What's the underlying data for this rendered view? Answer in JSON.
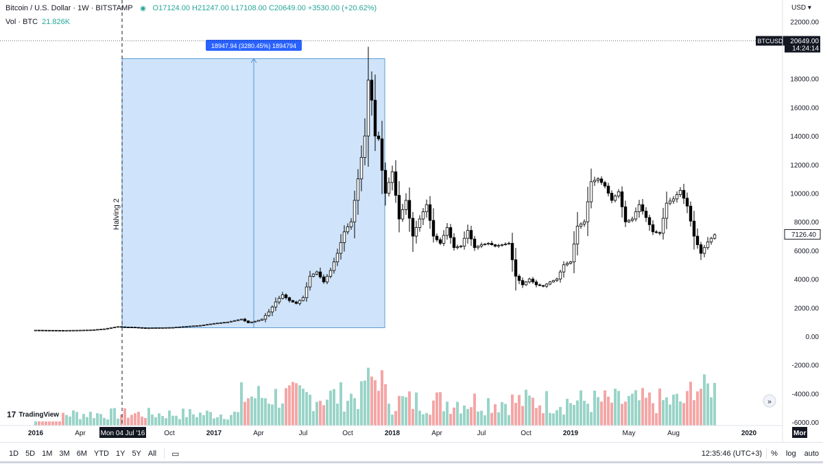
{
  "legend": {
    "symbol": "Bitcoin / U.S. Dollar · 1W · BITSTAMP",
    "open": "O17124.00",
    "high": "H21247.00",
    "low": "L17108.00",
    "close": "C20649.00",
    "change": "+3530.00 (+20.62%)",
    "vol_label": "Vol · BTC",
    "vol_value": "21.826K"
  },
  "currency": "USD",
  "price_tag": {
    "symbol": "BTCUSD",
    "price": "20649.00",
    "countdown": "14:24:14"
  },
  "last_label": "7126.40",
  "measure_label": "18947.94 (3280.45%) 1894794",
  "event_label": "Halving 2",
  "crosshair_date": "Mon 04 Jul '16",
  "time_labels": [
    {
      "t": "2016",
      "w": 0
    },
    {
      "t": "Apr",
      "w": 13
    },
    {
      "t": "Oct",
      "w": 39
    },
    {
      "t": "2017",
      "w": 52
    },
    {
      "t": "Apr",
      "w": 65
    },
    {
      "t": "Jul",
      "w": 78
    },
    {
      "t": "Oct",
      "w": 91
    },
    {
      "t": "2018",
      "w": 104
    },
    {
      "t": "Apr",
      "w": 117
    },
    {
      "t": "Jul",
      "w": 130
    },
    {
      "t": "Oct",
      "w": 143
    },
    {
      "t": "2019",
      "w": 156
    },
    {
      "t": "May",
      "w": 173
    },
    {
      "t": "Aug",
      "w": 186
    },
    {
      "t": "2020",
      "w": 208
    },
    {
      "t": "Mor",
      "w": 221
    }
  ],
  "price_ticks": [
    "22000.00",
    "18000.00",
    "16000.00",
    "14000.00",
    "12000.00",
    "10000.00",
    "8000.00",
    "6000.00",
    "4000.00",
    "2000.00",
    "0.00",
    "-2000.00",
    "-4000.00",
    "-6000.00"
  ],
  "timeframes": [
    "1D",
    "5D",
    "1M",
    "3M",
    "6M",
    "YTD",
    "1Y",
    "5Y",
    "All"
  ],
  "bottom_right": {
    "clock": "12:35:46 (UTC+3)",
    "percent": "%",
    "log": "log",
    "auto": "auto"
  },
  "logo_text": "TradingView",
  "colors": {
    "up": "#26a69a",
    "down": "#000000",
    "vol_up": "#9ad4c8",
    "vol_down": "#f4a6a6",
    "measure": "#2962ff"
  },
  "chart_data": {
    "type": "candlestick",
    "title": "Bitcoin / U.S. Dollar · 1W · BITSTAMP",
    "note": "weekly closes approximated; each point is [week_index, close]",
    "closes": [
      [
        0,
        430
      ],
      [
        4,
        420
      ],
      [
        8,
        415
      ],
      [
        12,
        425
      ],
      [
        16,
        445
      ],
      [
        20,
        520
      ],
      [
        24,
        680
      ],
      [
        26,
        650
      ],
      [
        28,
        640
      ],
      [
        32,
        580
      ],
      [
        36,
        600
      ],
      [
        40,
        620
      ],
      [
        44,
        700
      ],
      [
        48,
        760
      ],
      [
        52,
        900
      ],
      [
        56,
        1000
      ],
      [
        60,
        1200
      ],
      [
        62,
        950
      ],
      [
        64,
        1050
      ],
      [
        66,
        1200
      ],
      [
        68,
        1700
      ],
      [
        70,
        2400
      ],
      [
        72,
        2900
      ],
      [
        74,
        2500
      ],
      [
        76,
        2300
      ],
      [
        78,
        2700
      ],
      [
        80,
        4200
      ],
      [
        82,
        4500
      ],
      [
        84,
        3800
      ],
      [
        86,
        4600
      ],
      [
        88,
        5800
      ],
      [
        90,
        7300
      ],
      [
        92,
        8000
      ],
      [
        94,
        11000
      ],
      [
        96,
        14000
      ],
      [
        97,
        17900
      ],
      [
        98,
        16500
      ],
      [
        99,
        14000
      ],
      [
        100,
        13800
      ],
      [
        101,
        11600
      ],
      [
        102,
        10000
      ],
      [
        104,
        11500
      ],
      [
        106,
        8200
      ],
      [
        108,
        9500
      ],
      [
        110,
        7000
      ],
      [
        112,
        8200
      ],
      [
        114,
        9200
      ],
      [
        116,
        7000
      ],
      [
        118,
        6500
      ],
      [
        120,
        7600
      ],
      [
        122,
        6200
      ],
      [
        124,
        6300
      ],
      [
        126,
        7400
      ],
      [
        128,
        6200
      ],
      [
        130,
        6400
      ],
      [
        132,
        6500
      ],
      [
        134,
        6300
      ],
      [
        136,
        6400
      ],
      [
        138,
        6500
      ],
      [
        140,
        4200
      ],
      [
        142,
        3600
      ],
      [
        144,
        4000
      ],
      [
        146,
        3600
      ],
      [
        148,
        3500
      ],
      [
        150,
        3800
      ],
      [
        152,
        4000
      ],
      [
        154,
        5000
      ],
      [
        156,
        5200
      ],
      [
        158,
        7700
      ],
      [
        160,
        8000
      ],
      [
        162,
        10800
      ],
      [
        164,
        11000
      ],
      [
        166,
        10500
      ],
      [
        168,
        9500
      ],
      [
        170,
        10100
      ],
      [
        172,
        8000
      ],
      [
        174,
        8200
      ],
      [
        176,
        9200
      ],
      [
        178,
        8300
      ],
      [
        180,
        7300
      ],
      [
        182,
        7200
      ],
      [
        184,
        9300
      ],
      [
        186,
        9600
      ],
      [
        188,
        10200
      ],
      [
        190,
        9100
      ],
      [
        192,
        7000
      ],
      [
        194,
        5800
      ],
      [
        196,
        6600
      ],
      [
        198,
        7100
      ]
    ]
  }
}
